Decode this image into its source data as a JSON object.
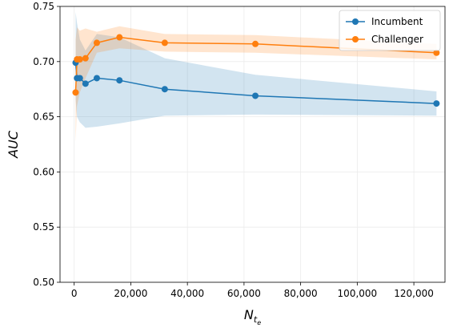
{
  "chart_data": {
    "type": "line",
    "title": "",
    "xlabel": "N",
    "xlabel_sub": "t",
    "xlabel_subsub": "e",
    "ylabel": "AUC",
    "xlim": [
      -5000,
      131000
    ],
    "ylim": [
      0.5,
      0.75
    ],
    "x_ticks": [
      0,
      20000,
      40000,
      60000,
      80000,
      100000,
      120000
    ],
    "x_tick_labels": [
      "0",
      "20,000",
      "40,000",
      "60,000",
      "80,000",
      "100,000",
      "120,000"
    ],
    "y_ticks": [
      0.5,
      0.55,
      0.6,
      0.65,
      0.7,
      0.75
    ],
    "y_tick_labels": [
      "0.50",
      "0.55",
      "0.60",
      "0.65",
      "0.70",
      "0.75"
    ],
    "grid": true,
    "legend_position": "top-right",
    "x": [
      500,
      1000,
      2000,
      4000,
      8000,
      16000,
      32000,
      64000,
      128000
    ],
    "series": [
      {
        "name": "Incumbent",
        "color": "#1f77b4",
        "values": [
          0.699,
          0.685,
          0.685,
          0.68,
          0.685,
          0.683,
          0.675,
          0.669,
          0.662
        ],
        "lower": [
          0.665,
          0.65,
          0.645,
          0.64,
          0.641,
          0.644,
          0.651,
          0.652,
          0.651
        ],
        "upper": [
          0.745,
          0.735,
          0.72,
          0.71,
          0.725,
          0.722,
          0.703,
          0.688,
          0.673
        ]
      },
      {
        "name": "Challenger",
        "color": "#ff7f0e",
        "values": [
          0.672,
          0.702,
          0.702,
          0.703,
          0.717,
          0.722,
          0.717,
          0.716,
          0.708
        ],
        "lower": [
          0.627,
          0.66,
          0.672,
          0.685,
          0.708,
          0.712,
          0.709,
          0.708,
          0.702
        ],
        "upper": [
          0.72,
          0.731,
          0.728,
          0.73,
          0.727,
          0.732,
          0.725,
          0.724,
          0.716
        ]
      }
    ]
  }
}
